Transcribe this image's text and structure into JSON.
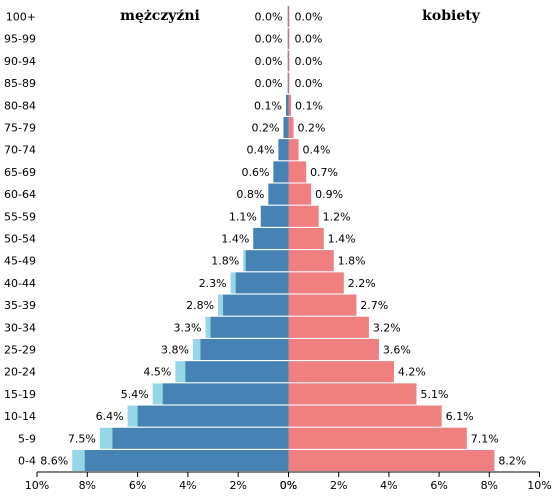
{
  "chart_data": {
    "type": "bar",
    "orientation": "horizontal",
    "layout": "population-pyramid",
    "categories": [
      "0-4",
      "5-9",
      "10-14",
      "15-19",
      "20-24",
      "25-29",
      "30-34",
      "35-39",
      "40-44",
      "45-49",
      "50-54",
      "55-59",
      "60-64",
      "65-69",
      "70-74",
      "75-79",
      "80-84",
      "85-89",
      "90-94",
      "95-99",
      "100+"
    ],
    "series": [
      {
        "name": "mężczyźni",
        "side": "left",
        "values": [
          8.6,
          7.5,
          6.4,
          5.4,
          4.5,
          3.8,
          3.3,
          2.8,
          2.3,
          1.8,
          1.4,
          1.1,
          0.8,
          0.6,
          0.4,
          0.2,
          0.1,
          0.0,
          0.0,
          0.0,
          0.0
        ],
        "labels": [
          "8.6%",
          "7.5%",
          "6.4%",
          "5.4%",
          "4.5%",
          "3.8%",
          "3.3%",
          "2.8%",
          "2.3%",
          "1.8%",
          "1.4%",
          "1.1%",
          "0.8%",
          "0.6%",
          "0.4%",
          "0.2%",
          "0.1%",
          "0.0%",
          "0.0%",
          "0.0%",
          "0.0%"
        ],
        "color": "#4682b4"
      },
      {
        "name": "kobiety",
        "side": "right",
        "values": [
          8.2,
          7.1,
          6.1,
          5.1,
          4.2,
          3.6,
          3.2,
          2.7,
          2.2,
          1.8,
          1.4,
          1.2,
          0.9,
          0.7,
          0.4,
          0.2,
          0.1,
          0.0,
          0.0,
          0.0,
          0.0
        ],
        "labels": [
          "8.2%",
          "7.1%",
          "6.1%",
          "5.1%",
          "4.2%",
          "3.6%",
          "3.2%",
          "2.7%",
          "2.2%",
          "1.8%",
          "1.4%",
          "1.2%",
          "0.9%",
          "0.7%",
          "0.4%",
          "0.2%",
          "0.1%",
          "0.0%",
          "0.0%",
          "0.0%",
          "0.0%"
        ],
        "color": "#f08080"
      }
    ],
    "comparison_overlay": {
      "left_values": [
        8.1,
        7.0,
        6.0,
        5.0,
        4.1,
        3.5,
        3.1,
        2.6,
        2.1,
        1.7,
        1.4,
        1.1,
        0.8,
        0.6,
        0.4,
        0.2,
        0.1,
        0.0,
        0.0,
        0.0,
        0.0
      ],
      "right_values": [
        8.2,
        7.1,
        6.1,
        5.1,
        4.2,
        3.6,
        3.2,
        2.7,
        2.2,
        1.8,
        1.4,
        1.2,
        0.9,
        0.7,
        0.4,
        0.2,
        0.1,
        0.0,
        0.0,
        0.0,
        0.0
      ],
      "left_color": "#96d6e6",
      "right_color": "#c8a0d8"
    },
    "left_title": "mężczyźni",
    "right_title": "kobiety",
    "left_ticks": [
      "10%",
      "8%",
      "6%",
      "4%",
      "2%",
      "0%"
    ],
    "right_ticks": [
      "0%",
      "2%",
      "4%",
      "6%",
      "8%",
      "10%"
    ],
    "xlim": [
      0,
      10
    ],
    "grid": false,
    "title": ""
  }
}
